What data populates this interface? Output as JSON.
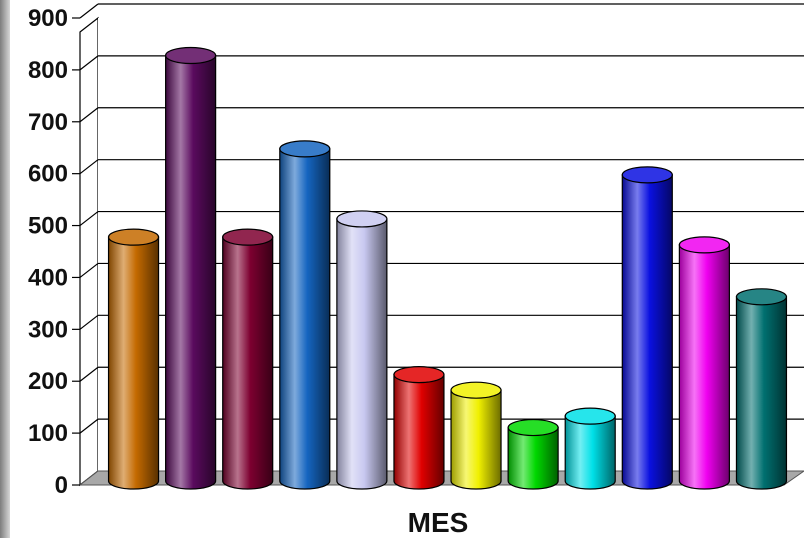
{
  "chart_data": {
    "type": "bar",
    "style": "3d-cylinder",
    "xlabel": "MES",
    "ylabel": "",
    "ylim": [
      0,
      900
    ],
    "yticks": [
      0,
      100,
      200,
      300,
      400,
      500,
      600,
      700,
      800,
      900
    ],
    "grid": true,
    "legend": "none",
    "values": [
      470,
      820,
      470,
      640,
      505,
      205,
      175,
      103,
      125,
      590,
      455,
      355
    ],
    "colors": [
      "#c46a00",
      "#5a0a5e",
      "#7d0030",
      "#1565c0",
      "#c8c8f0",
      "#e00000",
      "#f0f000",
      "#00d800",
      "#00e0e8",
      "#0a10e0",
      "#f000f0",
      "#007070"
    ]
  }
}
